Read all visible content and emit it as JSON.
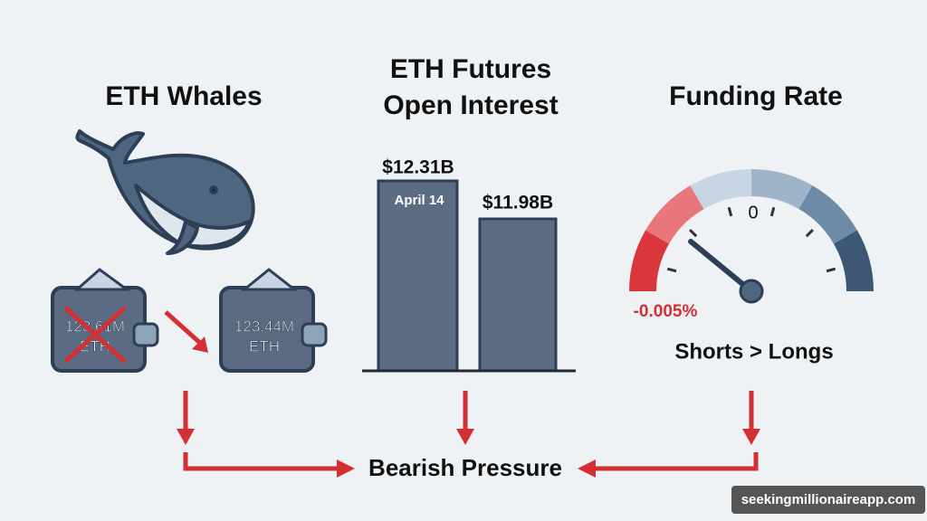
{
  "whales": {
    "title": "ETH Whales",
    "wallets": [
      {
        "amount": "123.61M",
        "unit": "ETH"
      },
      {
        "amount": "123.44M",
        "unit": "ETH"
      }
    ]
  },
  "open_interest": {
    "title_lines": [
      "ETH Futures",
      "Open Interest"
    ],
    "bars": [
      {
        "label": "$12.31B",
        "note": "April 14"
      },
      {
        "label": "$11.98B"
      }
    ]
  },
  "funding": {
    "title": "Funding Rate",
    "zero_label": "0",
    "value_label": "-0.005%",
    "caption": "Shorts > Longs"
  },
  "result": "Bearish Pressure",
  "watermark": "seekingmillionaireapp.com"
}
